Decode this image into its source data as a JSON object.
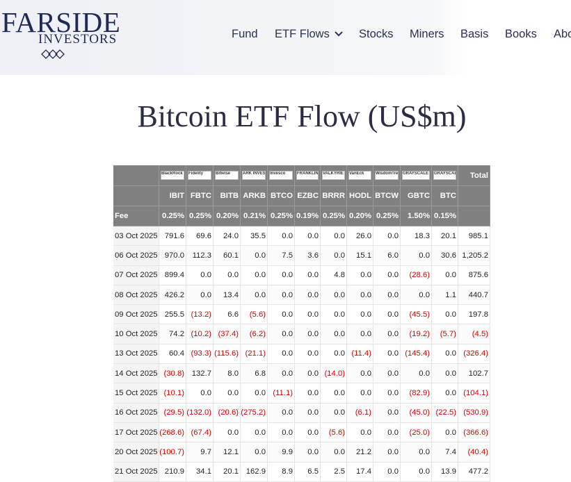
{
  "logo": {
    "name": "FARSIDE",
    "sub": "INVESTORS"
  },
  "nav": {
    "items": [
      "Fund",
      "ETF Flows",
      "Stocks",
      "Miners",
      "Basis",
      "Books",
      "Abo"
    ]
  },
  "title": "Bitcoin ETF Flow (US$m)",
  "table": {
    "negative_color": "#d40000",
    "logos": [
      "BlackRock",
      "Fidelity",
      "Bitwise",
      "ARK INVEST",
      "Invesco",
      "FRANKLIN TEMPLETON",
      "VALKYRIE",
      "VanEck",
      "WisdomTree",
      "GRAYSCALE",
      "GRAYSCALE"
    ],
    "total_label": "Total",
    "tickers": [
      "IBIT",
      "FBTC",
      "BITB",
      "ARKB",
      "BTCO",
      "EZBC",
      "BRRR",
      "HODL",
      "BTCW",
      "GBTC",
      "BTC"
    ],
    "fee_label": "Fee",
    "fees": [
      "0.25%",
      "0.25%",
      "0.20%",
      "0.21%",
      "0.25%",
      "0.19%",
      "0.25%",
      "0.20%",
      "0.25%",
      "1.50%",
      "0.15%"
    ],
    "rows": [
      [
        "03 Oct 2025",
        "791.6",
        "69.6",
        "24.0",
        "35.5",
        "0.0",
        "0.0",
        "0.0",
        "26.0",
        "0.0",
        "18.3",
        "20.1",
        "985.1"
      ],
      [
        "06 Oct 2025",
        "970.0",
        "112.3",
        "60.1",
        "0.0",
        "7.5",
        "3.6",
        "0.0",
        "15.1",
        "6.0",
        "0.0",
        "30.6",
        "1,205.2"
      ],
      [
        "07 Oct 2025",
        "899.4",
        "0.0",
        "0.0",
        "0.0",
        "0.0",
        "0.0",
        "4.8",
        "0.0",
        "0.0",
        "(28.6)",
        "0.0",
        "875.6"
      ],
      [
        "08 Oct 2025",
        "426.2",
        "0.0",
        "13.4",
        "0.0",
        "0.0",
        "0.0",
        "0.0",
        "0.0",
        "0.0",
        "0.0",
        "1.1",
        "440.7"
      ],
      [
        "09 Oct 2025",
        "255.5",
        "(13.2)",
        "6.6",
        "(5.6)",
        "0.0",
        "0.0",
        "0.0",
        "0.0",
        "0.0",
        "(45.5)",
        "0.0",
        "197.8"
      ],
      [
        "10 Oct 2025",
        "74.2",
        "(10.2)",
        "(37.4)",
        "(6.2)",
        "0.0",
        "0.0",
        "0.0",
        "0.0",
        "0.0",
        "(19.2)",
        "(5.7)",
        "(4.5)"
      ],
      [
        "13 Oct 2025",
        "60.4",
        "(93.3)",
        "(115.6)",
        "(21.1)",
        "0.0",
        "0.0",
        "0.0",
        "(11.4)",
        "0.0",
        "(145.4)",
        "0.0",
        "(326.4)"
      ],
      [
        "14 Oct 2025",
        "(30.8)",
        "132.7",
        "8.0",
        "6.8",
        "0.0",
        "0.0",
        "(14.0)",
        "0.0",
        "0.0",
        "0.0",
        "0.0",
        "102.7"
      ],
      [
        "15 Oct 2025",
        "(10.1)",
        "0.0",
        "0.0",
        "0.0",
        "(11.1)",
        "0.0",
        "0.0",
        "0.0",
        "0.0",
        "(82.9)",
        "0.0",
        "(104.1)"
      ],
      [
        "16 Oct 2025",
        "(29.5)",
        "(132.0)",
        "(20.6)",
        "(275.2)",
        "0.0",
        "0.0",
        "0.0",
        "(6.1)",
        "0.0",
        "(45.0)",
        "(22.5)",
        "(530.9)"
      ],
      [
        "17 Oct 2025",
        "(268.6)",
        "(67.4)",
        "0.0",
        "0.0",
        "0.0",
        "0.0",
        "(5.6)",
        "0.0",
        "0.0",
        "(25.0)",
        "0.0",
        "(366.6)"
      ],
      [
        "20 Oct 2025",
        "(100.7)",
        "9.7",
        "12.1",
        "0.0",
        "9.9",
        "0.0",
        "0.0",
        "21.2",
        "0.0",
        "0.0",
        "7.4",
        "(40.4)"
      ],
      [
        "21 Oct 2025",
        "210.9",
        "34.1",
        "20.1",
        "162.9",
        "8.9",
        "6.5",
        "2.5",
        "17.4",
        "0.0",
        "0.0",
        "13.9",
        "477.2"
      ]
    ]
  }
}
